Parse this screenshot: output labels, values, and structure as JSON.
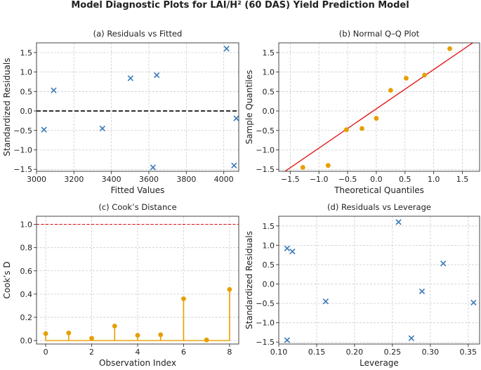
{
  "figure": {
    "title": "Model Diagnostic Plots for LAI/H² (60 DAS) Yield Prediction Model"
  },
  "chart_data": [
    {
      "id": "resid_fitted",
      "type": "scatter",
      "title": "(a) Residuals vs Fitted",
      "xlabel": "Fitted Values",
      "ylabel": "Standardized Residuals",
      "xlim": [
        3000,
        4080
      ],
      "ylim": [
        -1.55,
        1.75
      ],
      "xticks": [
        3000,
        3200,
        3400,
        3600,
        3800,
        4000
      ],
      "yticks": [
        -1.5,
        -1.0,
        -0.5,
        0.0,
        0.5,
        1.0,
        1.5
      ],
      "tick_decimals": [
        0,
        1
      ],
      "marker": "x",
      "color": "#3a7ab8",
      "points": [
        {
          "x": 3040,
          "y": -0.48
        },
        {
          "x": 3092,
          "y": 0.53
        },
        {
          "x": 3352,
          "y": -0.45
        },
        {
          "x": 3502,
          "y": 0.84
        },
        {
          "x": 3622,
          "y": -1.45
        },
        {
          "x": 3642,
          "y": 0.92
        },
        {
          "x": 4015,
          "y": 1.6
        },
        {
          "x": 4055,
          "y": -1.4
        },
        {
          "x": 4067,
          "y": -0.19
        }
      ],
      "reference_lines": [
        {
          "orientation": "h",
          "value": 0,
          "color": "#000000",
          "style": "dashed"
        }
      ]
    },
    {
      "id": "qq",
      "type": "scatter",
      "title": "(b) Normal Q–Q Plot",
      "xlabel": "Theoretical Quantiles",
      "ylabel": "Sample Quantiles",
      "xlim": [
        -1.7,
        1.8
      ],
      "ylim": [
        -1.55,
        1.75
      ],
      "xticks": [
        -1.5,
        -1.0,
        -0.5,
        0.0,
        0.5,
        1.0,
        1.5
      ],
      "yticks": [
        -1.5,
        -1.0,
        -0.5,
        0.0,
        0.5,
        1.0,
        1.5
      ],
      "tick_decimals": [
        1,
        1
      ],
      "marker": "o",
      "color": "#e69f00",
      "points": [
        {
          "x": -1.28,
          "y": -1.45
        },
        {
          "x": -0.84,
          "y": -1.4
        },
        {
          "x": -0.52,
          "y": -0.48
        },
        {
          "x": -0.25,
          "y": -0.45
        },
        {
          "x": 0.0,
          "y": -0.19
        },
        {
          "x": 0.25,
          "y": 0.53
        },
        {
          "x": 0.52,
          "y": 0.84
        },
        {
          "x": 0.84,
          "y": 0.92
        },
        {
          "x": 1.28,
          "y": 1.6
        }
      ],
      "fit_line": {
        "x": [
          -1.7,
          1.8
        ],
        "y": [
          -1.66,
          1.87
        ],
        "color": "#e41a1c"
      }
    },
    {
      "id": "cooks",
      "type": "stem",
      "title": "(c) Cook’s Distance",
      "xlabel": "Observation Index",
      "ylabel": "Cook’s D",
      "xlim": [
        -0.4,
        8.4
      ],
      "ylim": [
        -0.03,
        1.07
      ],
      "xticks": [
        0,
        2,
        4,
        6,
        8
      ],
      "yticks": [
        0.0,
        0.2,
        0.4,
        0.6,
        0.8,
        1.0
      ],
      "tick_decimals": [
        0,
        1
      ],
      "color": "#e69f00",
      "categories": [
        0,
        1,
        2,
        3,
        4,
        5,
        6,
        7,
        8
      ],
      "values": [
        0.06,
        0.065,
        0.02,
        0.125,
        0.045,
        0.05,
        0.36,
        0.005,
        0.44
      ],
      "reference_lines": [
        {
          "orientation": "h",
          "value": 1.0,
          "color": "#e41a1c",
          "style": "dashed"
        }
      ]
    },
    {
      "id": "resid_leverage",
      "type": "scatter",
      "title": "(d) Residuals vs Leverage",
      "xlabel": "Leverage",
      "ylabel": "Standardized Residuals",
      "xlim": [
        0.1,
        0.365
      ],
      "ylim": [
        -1.55,
        1.75
      ],
      "xticks": [
        0.1,
        0.15,
        0.2,
        0.25,
        0.3,
        0.35
      ],
      "yticks": [
        -1.5,
        -1.0,
        -0.5,
        0.0,
        0.5,
        1.0,
        1.5
      ],
      "tick_decimals": [
        2,
        1
      ],
      "marker": "x",
      "color": "#3a7ab8",
      "points": [
        {
          "x": 0.111,
          "y": 0.92
        },
        {
          "x": 0.118,
          "y": 0.84
        },
        {
          "x": 0.111,
          "y": -1.45
        },
        {
          "x": 0.162,
          "y": -0.45
        },
        {
          "x": 0.258,
          "y": 1.6
        },
        {
          "x": 0.275,
          "y": -1.4
        },
        {
          "x": 0.289,
          "y": -0.19
        },
        {
          "x": 0.317,
          "y": 0.53
        },
        {
          "x": 0.357,
          "y": -0.48
        }
      ]
    }
  ]
}
